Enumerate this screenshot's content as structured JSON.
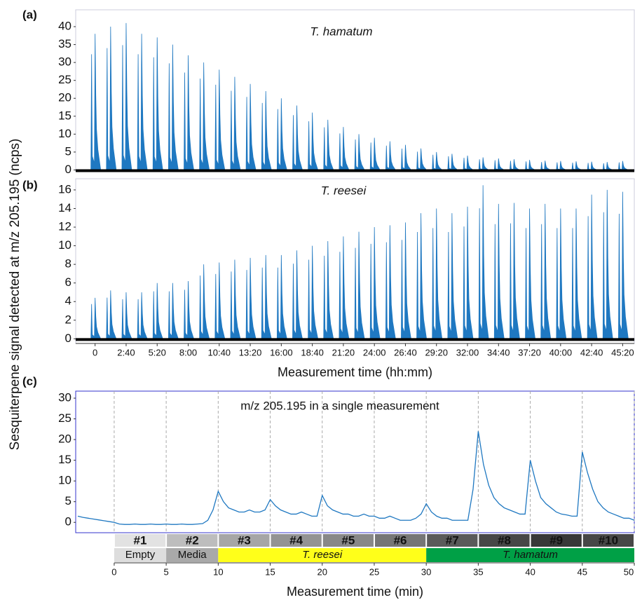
{
  "ylabel": "Sesquiterpene signal detected at m/z 205.195 (ncps)",
  "chart_data": [
    {
      "type": "spike",
      "label": "(a)",
      "annotation": "T. hamatum",
      "color": "#1f78c1",
      "x": [
        0,
        80,
        160,
        240,
        320,
        400,
        480,
        560,
        640,
        720,
        800,
        880,
        960,
        1040,
        1120,
        1200,
        1280,
        1360,
        1440,
        1520,
        1600,
        1680,
        1760,
        1840,
        1920,
        2000,
        2080,
        2160,
        2240,
        2320,
        2400,
        2480,
        2560,
        2640,
        2720
      ],
      "values": [
        38,
        40,
        41,
        38,
        37,
        35,
        32,
        30,
        28,
        26,
        24,
        22,
        20,
        18,
        16,
        14,
        12,
        10,
        9,
        8,
        7,
        6,
        5,
        4.5,
        4,
        3.5,
        3.2,
        3,
        2.8,
        2.6,
        2.5,
        2.4,
        2.3,
        2.2,
        2.5
      ],
      "xlim": [
        -100,
        2780
      ],
      "ylim": [
        -0.3,
        44.7
      ],
      "yticks": [
        0,
        5,
        10,
        15,
        20,
        25,
        30,
        35,
        40
      ]
    },
    {
      "type": "spike",
      "label": "(b)",
      "annotation": "T. reesei",
      "color": "#1f78c1",
      "x": [
        0,
        80,
        160,
        240,
        320,
        400,
        480,
        560,
        640,
        720,
        800,
        880,
        960,
        1040,
        1120,
        1200,
        1280,
        1360,
        1440,
        1520,
        1600,
        1680,
        1760,
        1840,
        1920,
        2000,
        2080,
        2160,
        2240,
        2320,
        2400,
        2480,
        2560,
        2640,
        2720
      ],
      "values": [
        4.4,
        5.2,
        5,
        5,
        6,
        6,
        6.2,
        8,
        8.2,
        8.5,
        8.7,
        9,
        9,
        9.5,
        10,
        10.5,
        11,
        11.5,
        12,
        12.2,
        12.5,
        13.5,
        14,
        13.5,
        14.2,
        16.5,
        14.5,
        14.6,
        14,
        14.5,
        14,
        14,
        15.5,
        16,
        15.8
      ],
      "xlim": [
        -100,
        2780
      ],
      "ylim": [
        -0.5,
        17.2
      ],
      "yticks": [
        0,
        2,
        4,
        6,
        8,
        10,
        12,
        14,
        16
      ],
      "xticks": [
        0,
        {
          "value": 160,
          "label": "2:40"
        },
        {
          "value": 320,
          "label": "5:20"
        },
        {
          "value": 480,
          "label": "8:00"
        },
        {
          "value": 640,
          "label": "10:40"
        },
        {
          "value": 800,
          "label": "13:20"
        },
        {
          "value": 960,
          "label": "16:00"
        },
        {
          "value": 1120,
          "label": "18:40"
        },
        {
          "value": 1280,
          "label": "21:20"
        },
        {
          "value": 1440,
          "label": "24:00"
        },
        {
          "value": 1600,
          "label": "26:40"
        },
        {
          "value": 1760,
          "label": "29:20"
        },
        {
          "value": 1920,
          "label": "32:00"
        },
        {
          "value": 2080,
          "label": "34:40"
        },
        {
          "value": 2240,
          "label": "37:20"
        },
        {
          "value": 2400,
          "label": "40:00"
        },
        {
          "value": 2560,
          "label": "42:40"
        },
        {
          "value": 2720,
          "label": "45:20"
        }
      ],
      "xlabel": "Measurement time (hh:mm)"
    },
    {
      "type": "line",
      "label": "(c)",
      "annotation": "m/z 205.195 in a single measurement",
      "color": "#1f78c1",
      "x": [
        -3.5,
        -3,
        -2.5,
        -2,
        -1.5,
        -1,
        -0.5,
        0,
        0.5,
        1,
        1.5,
        2,
        2.5,
        3,
        3.5,
        4,
        4.5,
        5,
        5.5,
        6,
        6.5,
        7,
        7.5,
        8,
        8.5,
        9,
        9.5,
        10,
        10.5,
        11,
        11.5,
        12,
        12.5,
        13,
        13.5,
        14,
        14.5,
        15,
        15.5,
        16,
        16.5,
        17,
        17.5,
        18,
        18.5,
        19,
        19.5,
        20,
        20.5,
        21,
        21.5,
        22,
        22.5,
        23,
        23.5,
        24,
        24.5,
        25,
        25.5,
        26,
        26.5,
        27,
        27.5,
        28,
        28.5,
        29,
        29.5,
        30,
        30.5,
        31,
        31.5,
        32,
        32.5,
        33,
        33.5,
        34,
        34.5,
        35,
        35.5,
        36,
        36.5,
        37,
        37.5,
        38,
        38.5,
        39,
        39.5,
        40,
        40.5,
        41,
        41.5,
        42,
        42.5,
        43,
        43.5,
        44,
        44.5,
        45,
        45.5,
        46,
        46.5,
        47,
        47.5,
        48,
        48.5,
        49,
        49.5,
        50
      ],
      "values": [
        1.5,
        1.2,
        1.0,
        0.8,
        0.6,
        0.4,
        0.2,
        0,
        -0.4,
        -0.5,
        -0.5,
        -0.4,
        -0.5,
        -0.5,
        -0.4,
        -0.5,
        -0.5,
        -0.4,
        -0.5,
        -0.5,
        -0.4,
        -0.5,
        -0.5,
        -0.4,
        -0.3,
        0.5,
        3,
        7.5,
        5,
        3.5,
        3,
        2.5,
        2.5,
        3,
        2.5,
        2.5,
        3,
        5.5,
        4,
        3,
        2.5,
        2,
        2,
        2.5,
        2,
        1.5,
        1.5,
        6.5,
        4,
        3,
        2.5,
        2,
        2,
        1.5,
        1.5,
        2,
        1.5,
        1.5,
        1,
        1,
        1.5,
        1,
        0.5,
        0.5,
        0.5,
        1,
        2,
        4.5,
        2.5,
        1.5,
        1,
        1,
        0.5,
        0.5,
        0.5,
        0.5,
        8,
        22,
        14,
        9,
        6,
        4.5,
        3.5,
        3,
        2.5,
        2,
        2,
        15,
        10,
        6,
        4.5,
        3.5,
        2.5,
        2,
        1.8,
        1.5,
        1.5,
        17,
        12,
        8,
        5,
        3.5,
        2.5,
        2,
        1.5,
        1,
        1,
        0.5
      ],
      "xlim": [
        -3.7,
        50
      ],
      "ylim": [
        -2.5,
        31.7
      ],
      "yticks": [
        0,
        5,
        10,
        15,
        20,
        25,
        30
      ],
      "xticks": [
        0,
        5,
        10,
        15,
        20,
        25,
        30,
        35,
        40,
        45,
        50
      ],
      "grid": true,
      "xlabel": "Measurement time (min)",
      "samples": [
        {
          "label": "#1",
          "color": "#e2e2e2"
        },
        {
          "label": "#2",
          "color": "#bdbdbd"
        },
        {
          "label": "#3",
          "color": "#a6a6a6"
        },
        {
          "label": "#4",
          "color": "#939393"
        },
        {
          "label": "#5",
          "color": "#888888"
        },
        {
          "label": "#6",
          "color": "#767676"
        },
        {
          "label": "#7",
          "color": "#5a5a5a"
        },
        {
          "label": "#8",
          "color": "#474747"
        },
        {
          "label": "#9",
          "color": "#383838"
        },
        {
          "label": "#10",
          "color": "#474747"
        }
      ],
      "groups": [
        {
          "label": "Empty",
          "start": 0,
          "end": 5,
          "color": "#dddddd",
          "italic": false
        },
        {
          "label": "Media",
          "start": 5,
          "end": 10,
          "color": "#a9a9a9",
          "italic": false
        },
        {
          "label": "T. reesei",
          "start": 10,
          "end": 30,
          "color": "#ffff1a",
          "italic": true
        },
        {
          "label": "T. hamatum",
          "start": 30,
          "end": 50,
          "color": "#00a046",
          "italic": true
        }
      ]
    }
  ]
}
